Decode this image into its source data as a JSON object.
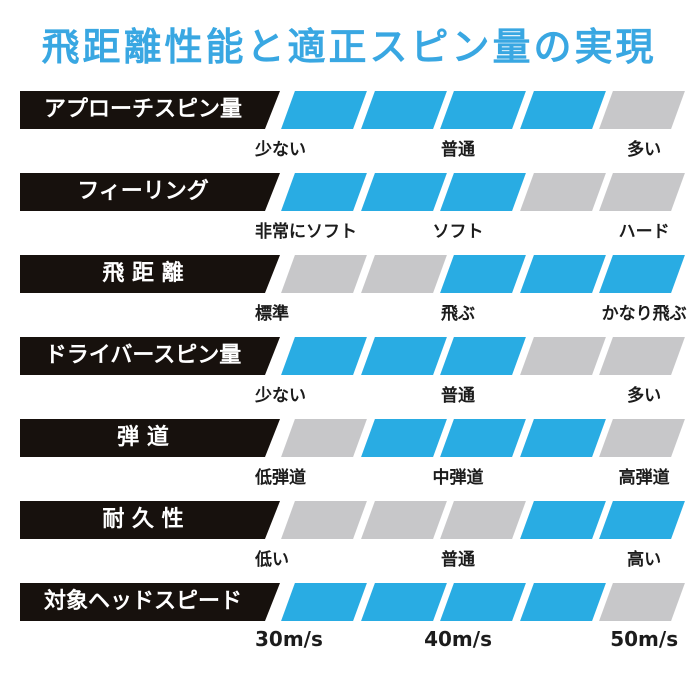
{
  "title": "飛距離性能と適正スピン量の実現",
  "colors": {
    "title_blue": "#39a7e2",
    "highlight_cyan": "#29ace3",
    "muted_gray": "#c7c7c9",
    "label_black": "#17110d",
    "scale_text": "#1c1c1c"
  },
  "segments_per_row": 5,
  "rows": [
    {
      "key": "approach-spin",
      "label": "アプローチスピン量",
      "segments": [
        1,
        1,
        1,
        1,
        0
      ],
      "scale": [
        "少ない",
        "普通",
        "多い"
      ],
      "scale_large": false
    },
    {
      "key": "feeling",
      "label": "フィーリング",
      "segments": [
        1,
        1,
        1,
        0,
        0
      ],
      "scale": [
        "非常にソフト",
        "ソフト",
        "ハード"
      ],
      "scale_large": false
    },
    {
      "key": "distance",
      "label": "飛 距 離",
      "segments": [
        0,
        0,
        1,
        1,
        1
      ],
      "scale": [
        "標準",
        "飛ぶ",
        "かなり飛ぶ"
      ],
      "scale_large": false
    },
    {
      "key": "driver-spin",
      "label": "ドライバースピン量",
      "segments": [
        1,
        1,
        1,
        0,
        0
      ],
      "scale": [
        "少ない",
        "普通",
        "多い"
      ],
      "scale_large": false
    },
    {
      "key": "trajectory",
      "label": "弾 道",
      "segments": [
        0,
        1,
        1,
        1,
        0
      ],
      "scale": [
        "低弾道",
        "中弾道",
        "高弾道"
      ],
      "scale_large": false
    },
    {
      "key": "durability",
      "label": "耐 久 性",
      "segments": [
        0,
        0,
        0,
        1,
        1
      ],
      "scale": [
        "低い",
        "普通",
        "高い"
      ],
      "scale_large": false
    },
    {
      "key": "head-speed",
      "label": "対象ヘッドスピード",
      "segments": [
        1,
        1,
        1,
        1,
        0
      ],
      "scale": [
        "30m/s",
        "40m/s",
        "50m/s"
      ],
      "scale_large": true
    }
  ],
  "chart_data": {
    "type": "bar",
    "title": "飛距離性能と適正スピン量の実現",
    "categories": [
      "アプローチスピン量",
      "フィーリング",
      "飛 距 離",
      "ドライバースピン量",
      "弾 道",
      "耐 久 性",
      "対象ヘッドスピード"
    ],
    "series": [
      {
        "name": "highlighted-segments (1=cyan, 0=gray, 5 segments left→right)",
        "values": [
          [
            1,
            1,
            1,
            1,
            0
          ],
          [
            1,
            1,
            1,
            0,
            0
          ],
          [
            0,
            0,
            1,
            1,
            1
          ],
          [
            1,
            1,
            1,
            0,
            0
          ],
          [
            0,
            1,
            1,
            1,
            0
          ],
          [
            0,
            0,
            0,
            1,
            1
          ],
          [
            1,
            1,
            1,
            1,
            0
          ]
        ]
      }
    ],
    "scale_labels": [
      [
        "少ない",
        "普通",
        "多い"
      ],
      [
        "非常にソフト",
        "ソフト",
        "ハード"
      ],
      [
        "標準",
        "飛ぶ",
        "かなり飛ぶ"
      ],
      [
        "少ない",
        "普通",
        "多い"
      ],
      [
        "低弾道",
        "中弾道",
        "高弾道"
      ],
      [
        "低い",
        "普通",
        "高い"
      ],
      [
        "30m/s",
        "40m/s",
        "50m/s"
      ]
    ],
    "xlabel": "",
    "ylabel": "",
    "axis_range": [
      0,
      5
    ],
    "grid": false,
    "legend_position": "none"
  }
}
